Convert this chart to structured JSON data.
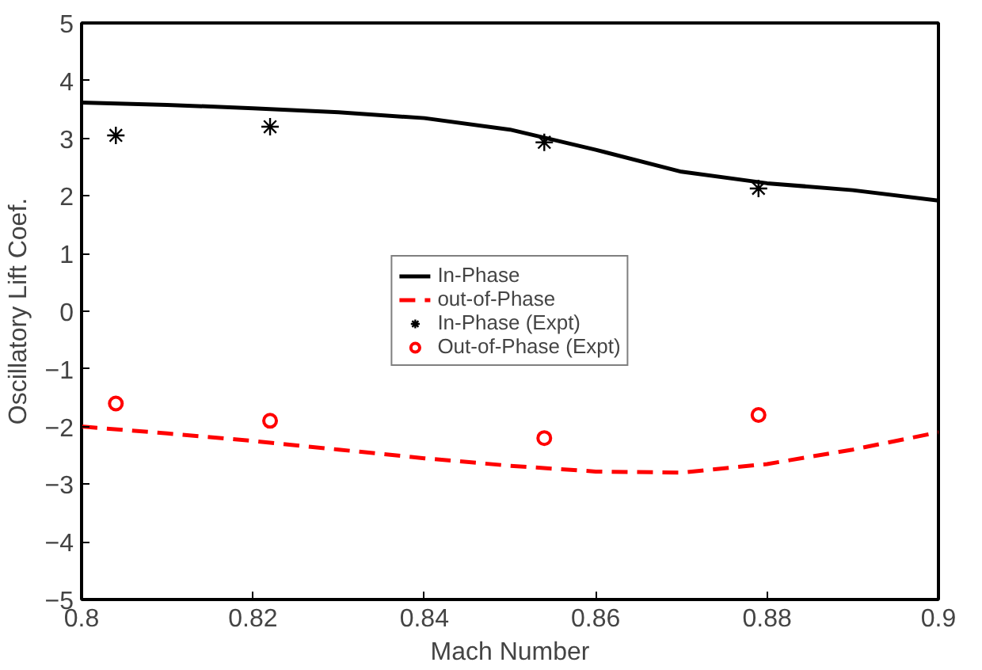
{
  "chart_data": {
    "type": "line",
    "xlabel": "Mach Number",
    "ylabel": "Oscillatory Lift Coef.",
    "xlim": [
      0.8,
      0.9
    ],
    "ylim": [
      -5,
      5
    ],
    "xticks": [
      0.8,
      0.82,
      0.84,
      0.86,
      0.88,
      0.9
    ],
    "yticks": [
      -5,
      -4,
      -3,
      -2,
      -1,
      0,
      1,
      2,
      3,
      4,
      5
    ],
    "grid": false,
    "legend": "center",
    "series": [
      {
        "name": "In-Phase",
        "color": "#000000",
        "line_style": "solid",
        "x": [
          0.8,
          0.81,
          0.82,
          0.83,
          0.84,
          0.85,
          0.86,
          0.87,
          0.88,
          0.89,
          0.9
        ],
        "values": [
          3.62,
          3.58,
          3.52,
          3.45,
          3.35,
          3.15,
          2.8,
          2.42,
          2.22,
          2.1,
          1.92
        ]
      },
      {
        "name": "out-of-Phase",
        "color": "#ff0000",
        "line_style": "dashed",
        "x": [
          0.8,
          0.81,
          0.82,
          0.83,
          0.84,
          0.85,
          0.86,
          0.87,
          0.88,
          0.89,
          0.9
        ],
        "values": [
          -2.0,
          -2.12,
          -2.25,
          -2.4,
          -2.55,
          -2.68,
          -2.78,
          -2.8,
          -2.65,
          -2.4,
          -2.1
        ]
      },
      {
        "name": "In-Phase (Expt)",
        "type": "scatter",
        "marker": "cross",
        "color": "#000000",
        "x": [
          0.804,
          0.822,
          0.854,
          0.879
        ],
        "values": [
          3.05,
          3.2,
          2.93,
          2.13
        ]
      },
      {
        "name": "Out-of-Phase (Expt)",
        "type": "scatter",
        "marker": "circle",
        "color": "#ff0000",
        "x": [
          0.804,
          0.822,
          0.854,
          0.879
        ],
        "values": [
          -1.6,
          -1.9,
          -2.2,
          -1.8
        ]
      }
    ]
  }
}
